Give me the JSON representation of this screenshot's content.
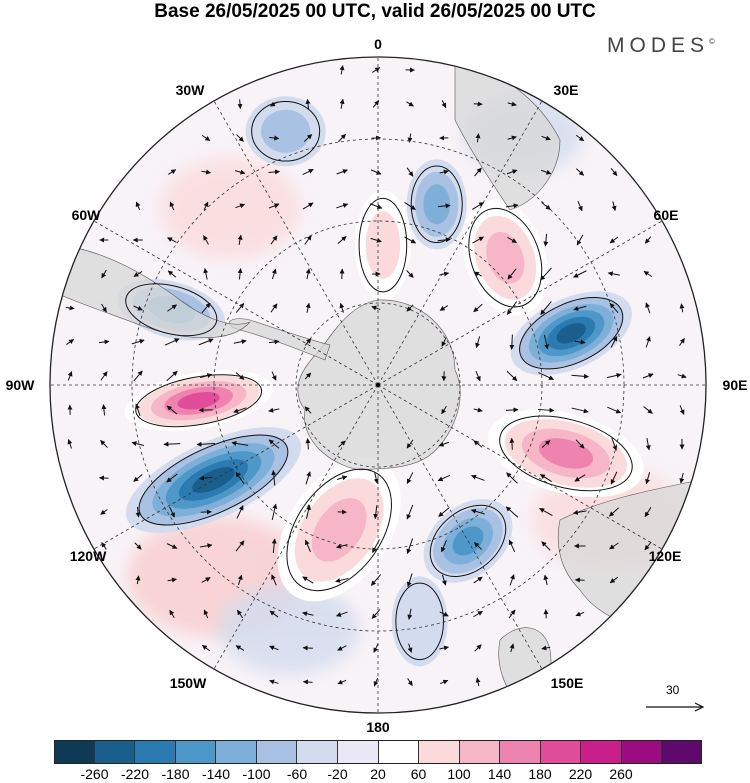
{
  "title": "Base 26/05/2025 00 UTC, valid 26/05/2025 00 UTC",
  "brand": "MODES",
  "brand_mark": "©",
  "projection": "south-polar-stereographic",
  "longitude_labels": [
    "0",
    "30E",
    "60E",
    "90E",
    "120E",
    "150E",
    "180",
    "150W",
    "120W",
    "90W",
    "60W",
    "30W"
  ],
  "wind_reference": {
    "value": "30",
    "icon": "arrow-right-icon"
  },
  "colorbar": {
    "ticks": [
      "-260",
      "-220",
      "-180",
      "-140",
      "-100",
      "-60",
      "-20",
      "20",
      "60",
      "100",
      "140",
      "180",
      "220",
      "260"
    ],
    "colors": [
      "#0e3a56",
      "#1a5e8c",
      "#2b7ab2",
      "#4d98c9",
      "#7eafd8",
      "#a9c1e2",
      "#d3dbee",
      "#eae8f4",
      "#ffffff",
      "#fbdadb",
      "#f6b6c8",
      "#ef83b0",
      "#e24d9b",
      "#c81f8b",
      "#9a0c80",
      "#5e0a6d"
    ]
  },
  "field_features": [
    {
      "type": "low",
      "lon": 75,
      "value": -250
    },
    {
      "type": "high",
      "lon": 110,
      "value": 190
    },
    {
      "type": "high",
      "lon": 45,
      "value": 150
    },
    {
      "type": "low",
      "lon": 18,
      "value": -120
    },
    {
      "type": "high",
      "lon": 2,
      "value": 110
    },
    {
      "type": "low",
      "lon": 150,
      "value": -180
    },
    {
      "type": "high",
      "lon": -165,
      "value": 150
    },
    {
      "type": "low",
      "lon": -120,
      "value": -240
    },
    {
      "type": "high",
      "lon": -95,
      "value": 220
    },
    {
      "type": "low",
      "lon": -70,
      "value": -130
    },
    {
      "type": "low",
      "lon": -20,
      "value": -80
    },
    {
      "type": "low",
      "lon": 170,
      "value": -60
    }
  ]
}
